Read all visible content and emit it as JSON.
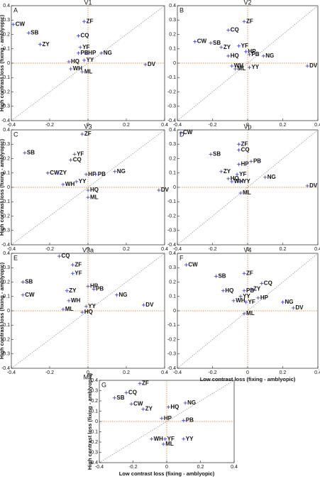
{
  "chart_data": [
    {
      "type": "scatter",
      "panel": "A",
      "title": "V1",
      "ylabel": "High contrast loss (fixing - amblyopic)",
      "color": "#4a4ac8",
      "labels": [
        "CW",
        "SB",
        "ZF",
        "CQ",
        "ZY",
        "YF",
        "PB",
        "HP",
        "NG",
        "HQ",
        "YY",
        "WH",
        "ML",
        "DV"
      ],
      "x": [
        -0.39,
        -0.31,
        -0.02,
        -0.05,
        -0.25,
        -0.04,
        -0.05,
        -0.01,
        0.07,
        -0.1,
        -0.02,
        -0.09,
        -0.03,
        0.3
      ],
      "values": [
        0.27,
        0.21,
        0.29,
        0.19,
        0.13,
        0.11,
        0.07,
        0.07,
        0.07,
        0.01,
        0.02,
        -0.04,
        -0.06,
        -0.01
      ],
      "xlim": [
        -0.4,
        0.4
      ],
      "ylim": [
        -0.4,
        0.4
      ],
      "xticks": [
        -0.4,
        -0.2,
        0,
        0.2,
        0.4
      ],
      "yticks": [
        -0.4,
        -0.3,
        -0.2,
        -0.1,
        0,
        0.1,
        0.2,
        0.3,
        0.4
      ]
    },
    {
      "type": "scatter",
      "panel": "B",
      "title": "V2",
      "color": "#4a4ac8",
      "labels": [
        "ZF",
        "CQ",
        "CW",
        "SB",
        "ZY",
        "YF",
        "HP",
        "PB",
        "NG",
        "HQ",
        "WH",
        "ML",
        "YY",
        "DV"
      ],
      "x": [
        -0.02,
        -0.11,
        -0.3,
        -0.21,
        -0.15,
        -0.05,
        -0.01,
        0.01,
        0.09,
        -0.11,
        -0.09,
        -0.07,
        0.01,
        0.34
      ],
      "values": [
        0.29,
        0.23,
        0.15,
        0.14,
        0.11,
        0.12,
        0.08,
        0.06,
        0.05,
        0.05,
        -0.02,
        -0.04,
        -0.03,
        -0.02
      ],
      "xlim": [
        -0.4,
        0.4
      ],
      "ylim": [
        -0.4,
        0.4
      ],
      "xticks": [
        -0.4,
        -0.2,
        0,
        0.2,
        0.4
      ],
      "yticks": [
        -0.4,
        -0.3,
        -0.2,
        -0.1,
        0,
        0.1,
        0.2,
        0.3,
        0.4
      ]
    },
    {
      "type": "scatter",
      "panel": "C",
      "title": "V3",
      "ylabel": "High contrast loss (fixing - amblyopic)",
      "color": "#4a4ac8",
      "labels": [
        "ZF",
        "SB",
        "YF",
        "CQ",
        "CW",
        "ZY",
        "HP",
        "PB",
        "NG",
        "YY",
        "WH",
        "HQ",
        "ML",
        "DV"
      ],
      "x": [
        -0.03,
        -0.33,
        -0.07,
        -0.09,
        -0.21,
        -0.16,
        -0.01,
        0.04,
        0.14,
        -0.06,
        -0.13,
        0,
        0,
        0.37
      ],
      "values": [
        0.37,
        0.24,
        0.23,
        0.19,
        0.1,
        0.1,
        0.09,
        0.09,
        0.11,
        0.04,
        0.02,
        -0.02,
        -0.07,
        -0.02
      ],
      "xlim": [
        -0.4,
        0.4
      ],
      "ylim": [
        -0.4,
        0.4
      ],
      "xticks": [
        -0.4,
        -0.2,
        0,
        0.2,
        0.4
      ],
      "yticks": [
        -0.4,
        -0.3,
        -0.2,
        -0.1,
        0,
        0.1,
        0.2,
        0.3,
        0.4
      ]
    },
    {
      "type": "scatter",
      "panel": "D",
      "title": "Vp",
      "color": "#4a4ac8",
      "labels": [
        "CW",
        "ZF",
        "CQ",
        "SB",
        "PB",
        "HP",
        "ZY",
        "YF",
        "HQ",
        "WH",
        "YY",
        "NG",
        "DV",
        "ML"
      ],
      "x": [
        -0.38,
        -0.05,
        -0.05,
        -0.21,
        0.02,
        -0.05,
        -0.15,
        -0.06,
        -0.11,
        -0.09,
        -0.04,
        0.1,
        0.34,
        -0.04
      ],
      "values": [
        0.38,
        0.3,
        0.26,
        0.23,
        0.18,
        0.16,
        0.11,
        0.09,
        0.06,
        0.04,
        0.04,
        0.07,
        0.01,
        -0.04
      ],
      "xlim": [
        -0.4,
        0.4
      ],
      "ylim": [
        -0.4,
        0.4
      ],
      "xticks": [
        -0.4,
        -0.2,
        0,
        0.2,
        0.4
      ],
      "yticks": [
        -0.4,
        -0.3,
        -0.2,
        -0.1,
        0,
        0.1,
        0.2,
        0.3,
        0.4
      ]
    },
    {
      "type": "scatter",
      "panel": "E",
      "title": "V3a",
      "ylabel": "High contrast loss (fixing - amblyopic)",
      "color": "#4a4ac8",
      "labels": [
        "CQ",
        "ZF",
        "YF",
        "SB",
        "CW",
        "HP",
        "PB",
        "NG",
        "ZY",
        "WH",
        "ML",
        "YY",
        "HQ",
        "DV"
      ],
      "x": [
        -0.15,
        -0.08,
        -0.08,
        -0.34,
        -0.34,
        0,
        0.03,
        0.15,
        -0.11,
        -0.1,
        -0.13,
        -0.01,
        -0.03,
        0.29
      ],
      "values": [
        0.38,
        0.32,
        0.26,
        0.2,
        0.11,
        0.17,
        0.15,
        0.11,
        0.14,
        0.07,
        0.01,
        0.03,
        -0.01,
        0.04
      ],
      "xlim": [
        -0.4,
        0.4
      ],
      "ylim": [
        -0.4,
        0.4
      ],
      "xticks": [
        -0.4,
        -0.2,
        0,
        0.2,
        0.4
      ],
      "yticks": [
        -0.4,
        -0.3,
        -0.2,
        -0.1,
        0,
        0.1,
        0.2,
        0.3,
        0.4
      ]
    },
    {
      "type": "scatter",
      "panel": "F",
      "title": "V4",
      "xlabel": "Low contrast loss (fixing - amblyopic)",
      "color": "#4a4ac8",
      "labels": [
        "CW",
        "ZF",
        "SB",
        "CQ",
        "HQ",
        "PB",
        "ZY",
        "YY",
        "HP",
        "WH",
        "YF",
        "NG",
        "DV",
        "ML"
      ],
      "x": [
        -0.35,
        -0.02,
        -0.18,
        0.08,
        -0.14,
        -0.02,
        0.02,
        -0.04,
        0.06,
        -0.08,
        -0.01,
        0.2,
        0.26,
        -0.02
      ],
      "values": [
        0.32,
        0.26,
        0.24,
        0.19,
        0.14,
        0.14,
        0.15,
        0.1,
        0.09,
        0.07,
        0.06,
        0.06,
        0.02,
        -0.02
      ],
      "xlim": [
        -0.4,
        0.4
      ],
      "ylim": [
        -0.4,
        0.4
      ],
      "xticks": [
        -0.4,
        -0.2,
        0,
        0.2,
        0.4
      ],
      "yticks": [
        -0.4,
        -0.3,
        -0.2,
        -0.1,
        0,
        0.1,
        0.2,
        0.3,
        0.4
      ]
    },
    {
      "type": "scatter",
      "panel": "G",
      "title": "MT",
      "ylabel": "High contrast loss (fixing - amblyopic)",
      "xlabel": "Low contrast loss (fixing - amblyopic)",
      "color": "#4a4ac8",
      "labels": [
        "ZF",
        "CQ",
        "SB",
        "CW",
        "ZY",
        "HQ",
        "NG",
        "HP",
        "PB",
        "WH",
        "YF",
        "ML",
        "YY"
      ],
      "x": [
        -0.16,
        -0.24,
        -0.31,
        -0.21,
        -0.14,
        0.01,
        0.11,
        -0.03,
        0.1,
        -0.09,
        -0.01,
        -0.02,
        0.1
      ],
      "values": [
        0.37,
        0.28,
        0.23,
        0.17,
        0.12,
        0.14,
        0.18,
        0.03,
        0.01,
        -0.17,
        -0.17,
        -0.22,
        -0.17
      ],
      "xlim": [
        -0.4,
        0.4
      ],
      "ylim": [
        -0.4,
        0.4
      ],
      "xticks": [
        -0.4,
        -0.2,
        0,
        0.2,
        0.4
      ],
      "yticks": [
        -0.4,
        -0.3,
        -0.2,
        -0.1,
        0,
        0.1,
        0.2,
        0.3,
        0.4
      ]
    }
  ]
}
